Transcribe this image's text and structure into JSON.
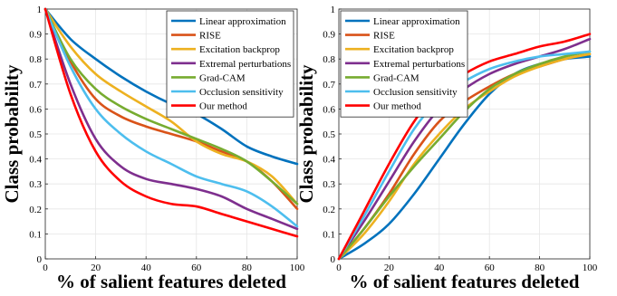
{
  "chart_data": [
    {
      "type": "line",
      "xlabel": "% of salient features deleted",
      "ylabel": "Class probability",
      "xlim": [
        0,
        100
      ],
      "ylim": [
        0,
        1
      ],
      "xticks": [
        "0",
        "20",
        "40",
        "60",
        "80",
        "100"
      ],
      "yticks": [
        "0",
        "0.1",
        "0.2",
        "0.3",
        "0.4",
        "0.5",
        "0.6",
        "0.7",
        "0.8",
        "0.9",
        "1"
      ],
      "grid": true,
      "legend": "top-right",
      "series": [
        {
          "name": "Linear approximation",
          "color": "#0072BD",
          "x": [
            0,
            10,
            20,
            30,
            40,
            50,
            60,
            70,
            80,
            90,
            100
          ],
          "y": [
            1.0,
            0.88,
            0.8,
            0.73,
            0.67,
            0.62,
            0.58,
            0.52,
            0.45,
            0.41,
            0.38
          ]
        },
        {
          "name": "RISE",
          "color": "#D95319",
          "x": [
            0,
            10,
            20,
            30,
            40,
            50,
            60,
            70,
            80,
            90,
            100
          ],
          "y": [
            1.0,
            0.79,
            0.64,
            0.57,
            0.53,
            0.5,
            0.47,
            0.43,
            0.39,
            0.31,
            0.2
          ]
        },
        {
          "name": "Excitation backprop",
          "color": "#EDB120",
          "x": [
            0,
            10,
            20,
            30,
            40,
            50,
            60,
            70,
            80,
            90,
            100
          ],
          "y": [
            1.0,
            0.85,
            0.74,
            0.67,
            0.61,
            0.55,
            0.47,
            0.42,
            0.39,
            0.33,
            0.22
          ]
        },
        {
          "name": "Extremal perturbations",
          "color": "#7E2F8E",
          "x": [
            0,
            10,
            20,
            30,
            40,
            50,
            60,
            70,
            80,
            90,
            100
          ],
          "y": [
            1.0,
            0.7,
            0.48,
            0.37,
            0.32,
            0.3,
            0.28,
            0.25,
            0.2,
            0.16,
            0.12
          ]
        },
        {
          "name": "Grad-CAM",
          "color": "#77AC30",
          "x": [
            0,
            10,
            20,
            30,
            40,
            50,
            60,
            70,
            80,
            90,
            100
          ],
          "y": [
            1.0,
            0.8,
            0.68,
            0.61,
            0.56,
            0.52,
            0.48,
            0.44,
            0.39,
            0.31,
            0.22
          ]
        },
        {
          "name": "Occlusion sensitivity",
          "color": "#4DBEEE",
          "x": [
            0,
            10,
            20,
            30,
            40,
            50,
            60,
            70,
            80,
            90,
            100
          ],
          "y": [
            1.0,
            0.77,
            0.6,
            0.5,
            0.43,
            0.38,
            0.33,
            0.3,
            0.27,
            0.21,
            0.13
          ]
        },
        {
          "name": "Our method",
          "color": "#FF0000",
          "x": [
            0,
            10,
            20,
            30,
            40,
            50,
            60,
            70,
            80,
            90,
            100
          ],
          "y": [
            1.0,
            0.66,
            0.43,
            0.31,
            0.25,
            0.22,
            0.21,
            0.18,
            0.15,
            0.12,
            0.09
          ]
        }
      ]
    },
    {
      "type": "line",
      "xlabel": "% of salient features deleted",
      "ylabel": "Class probability",
      "xlim": [
        0,
        100
      ],
      "ylim": [
        0,
        1
      ],
      "xticks": [
        "0",
        "20",
        "40",
        "60",
        "80",
        "100"
      ],
      "yticks": [
        "0",
        "0.1",
        "0.2",
        "0.3",
        "0.4",
        "0.5",
        "0.6",
        "0.7",
        "0.8",
        "0.9",
        "1"
      ],
      "grid": true,
      "legend": "top-left",
      "series": [
        {
          "name": "Linear approximation",
          "color": "#0072BD",
          "x": [
            0,
            10,
            20,
            30,
            40,
            50,
            60,
            70,
            80,
            90,
            100
          ],
          "y": [
            0.0,
            0.06,
            0.14,
            0.26,
            0.4,
            0.54,
            0.66,
            0.74,
            0.78,
            0.8,
            0.81
          ]
        },
        {
          "name": "RISE",
          "color": "#D95319",
          "x": [
            0,
            10,
            20,
            30,
            40,
            50,
            60,
            70,
            80,
            90,
            100
          ],
          "y": [
            0.0,
            0.12,
            0.26,
            0.42,
            0.55,
            0.63,
            0.69,
            0.74,
            0.77,
            0.8,
            0.82
          ]
        },
        {
          "name": "Excitation backprop",
          "color": "#EDB120",
          "x": [
            0,
            10,
            20,
            30,
            40,
            50,
            60,
            70,
            80,
            90,
            100
          ],
          "y": [
            0.0,
            0.1,
            0.23,
            0.38,
            0.5,
            0.6,
            0.67,
            0.73,
            0.77,
            0.8,
            0.82
          ]
        },
        {
          "name": "Extremal perturbations",
          "color": "#7E2F8E",
          "x": [
            0,
            10,
            20,
            30,
            40,
            50,
            60,
            70,
            80,
            90,
            100
          ],
          "y": [
            0.0,
            0.15,
            0.31,
            0.47,
            0.6,
            0.68,
            0.74,
            0.78,
            0.81,
            0.84,
            0.88
          ]
        },
        {
          "name": "Grad-CAM",
          "color": "#77AC30",
          "x": [
            0,
            10,
            20,
            30,
            40,
            50,
            60,
            70,
            80,
            90,
            100
          ],
          "y": [
            0.0,
            0.12,
            0.25,
            0.37,
            0.48,
            0.59,
            0.68,
            0.74,
            0.78,
            0.81,
            0.83
          ]
        },
        {
          "name": "Occlusion sensitivity",
          "color": "#4DBEEE",
          "x": [
            0,
            10,
            20,
            30,
            40,
            50,
            60,
            70,
            80,
            90,
            100
          ],
          "y": [
            0.0,
            0.17,
            0.35,
            0.52,
            0.64,
            0.71,
            0.76,
            0.79,
            0.81,
            0.82,
            0.83
          ]
        },
        {
          "name": "Our method",
          "color": "#FF0000",
          "x": [
            0,
            10,
            20,
            30,
            40,
            50,
            60,
            70,
            80,
            90,
            100
          ],
          "y": [
            0.0,
            0.19,
            0.38,
            0.55,
            0.67,
            0.74,
            0.79,
            0.82,
            0.85,
            0.87,
            0.9
          ]
        }
      ]
    }
  ]
}
